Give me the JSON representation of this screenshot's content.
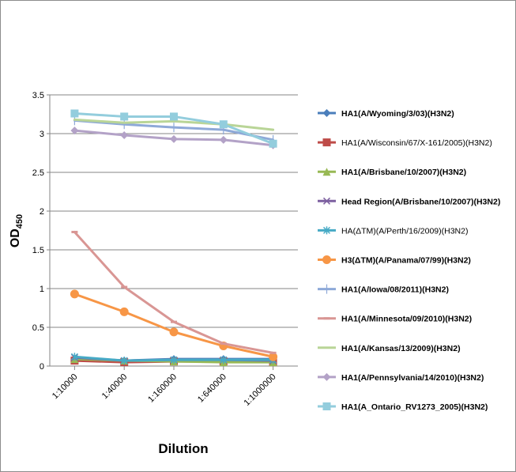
{
  "chart_data": {
    "type": "line",
    "title": "",
    "xlabel": "Dilution",
    "ylabel": "OD",
    "ylabel_subscript": "450",
    "categories": [
      "1:10000",
      "1:40000",
      "1:160000",
      "1:640000",
      "1:1000000"
    ],
    "ylim": [
      0,
      3.5
    ],
    "yticks": [
      "0",
      "0.5",
      "1",
      "1.5",
      "2",
      "2.5",
      "3",
      "3.5"
    ],
    "grid": true,
    "legend_position": "right",
    "series": [
      {
        "name": "HA1(A/Wyoming/3/03)(H3N2)",
        "color": "#4A7EBB",
        "marker": "diamond",
        "bold": true,
        "values": [
          0.1,
          0.07,
          0.09,
          0.09,
          0.09
        ]
      },
      {
        "name": "HA1(A/Wisconsin/67/X-161/2005)(H3N2)",
        "color": "#BE4B48",
        "marker": "square",
        "bold": false,
        "values": [
          0.07,
          0.05,
          0.06,
          0.06,
          0.05
        ]
      },
      {
        "name": "HA1(A/Brisbane/10/2007)(H3N2)",
        "color": "#98B954",
        "marker": "triangle",
        "bold": true,
        "values": [
          0.09,
          0.07,
          0.06,
          0.05,
          0.05
        ]
      },
      {
        "name": "Head Region(A/Brisbane/10/2007)(H3N2)",
        "color": "#7D60A0",
        "marker": "x",
        "bold": true,
        "values": [
          0.11,
          0.07,
          0.08,
          0.08,
          0.07
        ]
      },
      {
        "name": "HA(ΔTM)(A/Perth/16/2009)(H3N2)",
        "color": "#46AAC5",
        "marker": "asterisk",
        "bold": false,
        "values": [
          0.12,
          0.07,
          0.08,
          0.08,
          0.08
        ]
      },
      {
        "name": "H3(ΔTM)(A/Panama/07/99)(H3N2)",
        "color": "#F79646",
        "marker": "circle",
        "bold": true,
        "values": [
          0.93,
          0.7,
          0.44,
          0.26,
          0.12
        ]
      },
      {
        "name": "HA1(A/Iowa/08/2011)(H3N2)",
        "color": "#8EA9D8",
        "marker": "plus",
        "bold": true,
        "values": [
          3.17,
          3.12,
          3.08,
          3.05,
          2.92
        ]
      },
      {
        "name": "HA1(A/Minnesota/09/2010)(H3N2)",
        "color": "#D99694",
        "marker": "dash",
        "bold": true,
        "values": [
          1.73,
          1.02,
          0.57,
          0.29,
          0.17
        ]
      },
      {
        "name": "HA1(A/Kansas/13/2009)(H3N2)",
        "color": "#B9D597",
        "marker": "none",
        "bold": true,
        "values": [
          3.18,
          3.14,
          3.16,
          3.12,
          3.05
        ]
      },
      {
        "name": "HA1(A/Pennsylvania/14/2010)(H3N2)",
        "color": "#B3A2C7",
        "marker": "diamond",
        "bold": true,
        "values": [
          3.04,
          2.98,
          2.93,
          2.92,
          2.85
        ]
      },
      {
        "name": "HA1(A_Ontario_RV1273_2005)(H3N2)",
        "color": "#93CDDD",
        "marker": "square",
        "bold": true,
        "values": [
          3.26,
          3.22,
          3.22,
          3.12,
          2.87
        ]
      }
    ]
  }
}
